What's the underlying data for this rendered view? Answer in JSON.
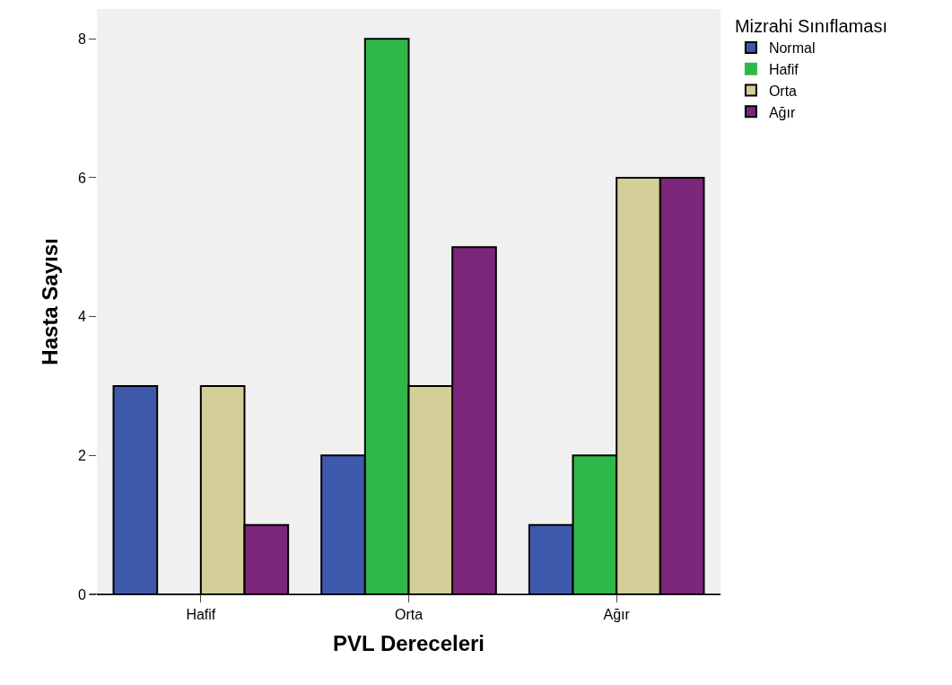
{
  "chart_data": {
    "type": "bar",
    "xlabel": "PVL Dereceleri",
    "ylabel": "Hasta Sayısı",
    "legend_title": "Mizrahi Sınıflaması",
    "categories": [
      "Hafif",
      "Orta",
      "Ağır"
    ],
    "series": [
      {
        "name": "Normal",
        "color": "#3e58ac",
        "values": [
          3,
          2,
          1
        ]
      },
      {
        "name": "Hafif",
        "color": "#2fb84a",
        "values": [
          0,
          8,
          2
        ]
      },
      {
        "name": "Orta",
        "color": "#d4cf98",
        "values": [
          3,
          3,
          6
        ]
      },
      {
        "name": "Ağır",
        "color": "#7b2678",
        "values": [
          1,
          5,
          6
        ]
      }
    ],
    "ylim": [
      0,
      8.43
    ],
    "yticks": [
      0,
      2,
      4,
      6,
      8
    ],
    "grid": false,
    "legend": "top right"
  }
}
